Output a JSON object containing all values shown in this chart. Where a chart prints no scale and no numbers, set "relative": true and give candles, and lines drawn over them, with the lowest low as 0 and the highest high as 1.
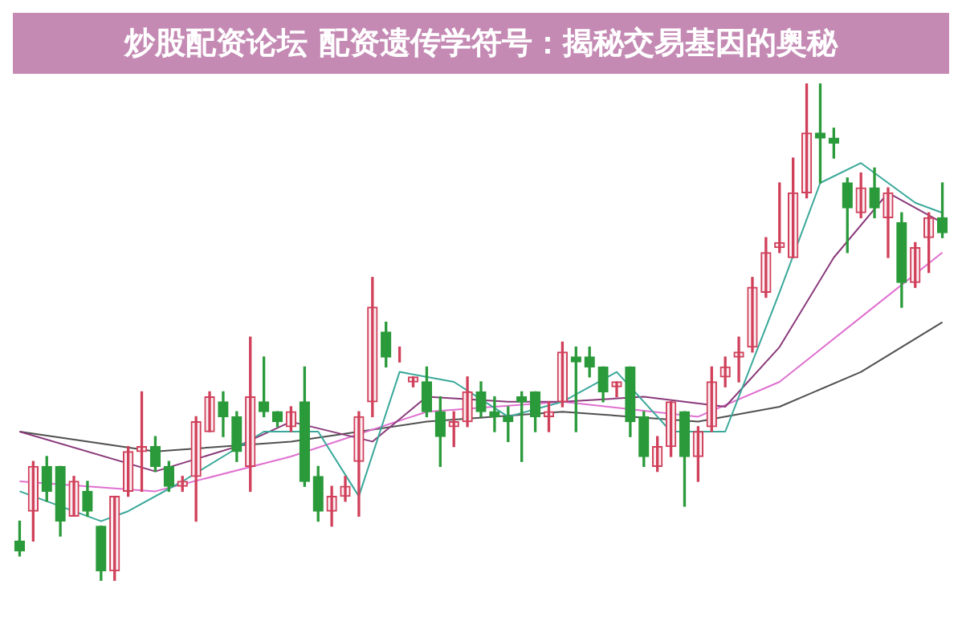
{
  "chart_data": {
    "type": "candlestick",
    "title": "炒股配资论坛 配资遗传学符号：揭秘交易基因的奥秘",
    "relative": true,
    "legend": false,
    "categories": [
      null,
      null,
      null,
      null,
      null,
      null,
      null,
      null,
      null,
      null,
      null,
      null,
      null,
      null,
      null,
      null,
      null,
      null,
      null,
      null,
      null,
      null,
      null,
      null,
      null,
      null,
      null,
      null,
      null,
      null,
      null,
      null,
      null,
      null,
      null,
      null,
      null,
      null,
      null,
      null,
      null,
      null,
      null,
      null,
      null,
      null,
      null,
      null,
      null,
      null,
      null,
      null,
      null,
      null,
      null,
      null,
      null,
      null,
      null,
      null,
      null,
      null,
      null,
      null,
      null,
      null,
      null,
      null,
      null
    ],
    "ohlc": [
      [
        0.08,
        0.12,
        0.05,
        0.06
      ],
      [
        0.14,
        0.24,
        0.08,
        0.23
      ],
      [
        0.23,
        0.25,
        0.16,
        0.18
      ],
      [
        0.23,
        0.23,
        0.09,
        0.12
      ],
      [
        0.13,
        0.21,
        0.13,
        0.2
      ],
      [
        0.18,
        0.2,
        0.13,
        0.14
      ],
      [
        0.11,
        0.11,
        0.0,
        0.02
      ],
      [
        0.02,
        0.17,
        0.0,
        0.17
      ],
      [
        0.18,
        0.27,
        0.17,
        0.26
      ],
      [
        0.26,
        0.38,
        0.18,
        0.27
      ],
      [
        0.27,
        0.29,
        0.22,
        0.23
      ],
      [
        0.23,
        0.24,
        0.18,
        0.19
      ],
      [
        0.19,
        0.21,
        0.18,
        0.2
      ],
      [
        0.21,
        0.33,
        0.12,
        0.32
      ],
      [
        0.3,
        0.38,
        0.3,
        0.37
      ],
      [
        0.36,
        0.38,
        0.29,
        0.33
      ],
      [
        0.33,
        0.34,
        0.24,
        0.26
      ],
      [
        0.23,
        0.49,
        0.18,
        0.37
      ],
      [
        0.36,
        0.45,
        0.33,
        0.34
      ],
      [
        0.34,
        0.34,
        0.31,
        0.32
      ],
      [
        0.31,
        0.35,
        0.3,
        0.34
      ],
      [
        0.36,
        0.43,
        0.19,
        0.2
      ],
      [
        0.21,
        0.23,
        0.12,
        0.14
      ],
      [
        0.14,
        0.19,
        0.11,
        0.17
      ],
      [
        0.17,
        0.21,
        0.16,
        0.19
      ],
      [
        0.24,
        0.34,
        0.13,
        0.33
      ],
      [
        0.36,
        0.61,
        0.33,
        0.55
      ],
      [
        0.5,
        0.52,
        0.43,
        0.45
      ],
      [
        0.46,
        0.47,
        0.44,
        0.46
      ],
      [
        0.4,
        0.41,
        0.39,
        0.41
      ],
      [
        0.4,
        0.43,
        0.33,
        0.34
      ],
      [
        0.34,
        0.37,
        0.23,
        0.29
      ],
      [
        0.31,
        0.34,
        0.27,
        0.32
      ],
      [
        0.32,
        0.41,
        0.31,
        0.38
      ],
      [
        0.38,
        0.4,
        0.33,
        0.34
      ],
      [
        0.34,
        0.37,
        0.3,
        0.33
      ],
      [
        0.33,
        0.35,
        0.28,
        0.32
      ],
      [
        0.37,
        0.38,
        0.24,
        0.36
      ],
      [
        0.38,
        0.38,
        0.3,
        0.33
      ],
      [
        0.33,
        0.36,
        0.3,
        0.34
      ],
      [
        0.36,
        0.48,
        0.35,
        0.46
      ],
      [
        0.45,
        0.47,
        0.3,
        0.44
      ],
      [
        0.45,
        0.47,
        0.41,
        0.43
      ],
      [
        0.43,
        0.43,
        0.36,
        0.38
      ],
      [
        0.39,
        0.4,
        0.37,
        0.4
      ],
      [
        0.43,
        0.43,
        0.29,
        0.32
      ],
      [
        0.33,
        0.34,
        0.23,
        0.25
      ],
      [
        0.23,
        0.29,
        0.22,
        0.27
      ],
      [
        0.27,
        0.36,
        0.25,
        0.36
      ],
      [
        0.34,
        0.34,
        0.15,
        0.25
      ],
      [
        0.25,
        0.31,
        0.2,
        0.3
      ],
      [
        0.31,
        0.43,
        0.3,
        0.4
      ],
      [
        0.41,
        0.45,
        0.39,
        0.43
      ],
      [
        0.45,
        0.49,
        0.4,
        0.46
      ],
      [
        0.47,
        0.61,
        0.46,
        0.59
      ],
      [
        0.58,
        0.69,
        0.57,
        0.66
      ],
      [
        0.67,
        0.8,
        0.66,
        0.68
      ],
      [
        0.65,
        0.85,
        0.65,
        0.78
      ],
      [
        0.78,
        1,
        0.77,
        0.9
      ],
      [
        0.9,
        1,
        0.8,
        0.89
      ],
      [
        0.89,
        0.91,
        0.85,
        0.88
      ],
      [
        0.8,
        0.81,
        0.66,
        0.75
      ],
      [
        0.74,
        0.82,
        0.73,
        0.79
      ],
      [
        0.79,
        0.83,
        0.73,
        0.75
      ],
      [
        0.73,
        0.79,
        0.65,
        0.78
      ],
      [
        0.72,
        0.74,
        0.55,
        0.6
      ],
      [
        0.6,
        0.68,
        0.59,
        0.67
      ],
      [
        0.69,
        0.74,
        0.62,
        0.73
      ],
      [
        0.73,
        0.8,
        0.69,
        0.7
      ]
    ],
    "series": [
      {
        "type": "line",
        "color": "#3aa89a",
        "values": [
          0.18,
          null,
          null,
          null,
          null,
          null,
          0.12,
          null,
          0.14,
          null,
          null,
          null,
          0.2,
          null,
          null,
          null,
          null,
          null,
          0.3,
          null,
          null,
          null,
          0.3,
          null,
          null,
          0.17,
          null,
          null,
          0.42,
          null,
          null,
          null,
          0.4,
          null,
          null,
          null,
          0.33,
          null,
          null,
          null,
          0.36,
          null,
          null,
          null,
          0.42,
          null,
          null,
          null,
          0.3,
          null,
          null,
          null,
          0.3,
          null,
          null,
          null,
          0.58,
          null,
          null,
          0.8,
          null,
          null,
          0.84,
          null,
          null,
          null,
          0.76,
          null,
          0.74
        ]
      },
      {
        "type": "line",
        "color": "#8a3a7a",
        "values": [
          0.3,
          null,
          null,
          null,
          null,
          null,
          null,
          null,
          null,
          null,
          0.22,
          null,
          null,
          null,
          null,
          null,
          0.27,
          null,
          null,
          null,
          0.32,
          null,
          null,
          null,
          null,
          null,
          0.28,
          null,
          null,
          null,
          0.37,
          null,
          null,
          null,
          null,
          null,
          0.36,
          null,
          null,
          null,
          0.36,
          null,
          null,
          null,
          null,
          null,
          0.37,
          null,
          null,
          null,
          null,
          null,
          0.35,
          null,
          null,
          null,
          0.47,
          null,
          null,
          null,
          0.65,
          null,
          null,
          null,
          0.78,
          null,
          null,
          null,
          0.72
        ]
      },
      {
        "type": "line",
        "color": "#e070d0",
        "values": [
          0.2,
          null,
          null,
          null,
          null,
          null,
          null,
          null,
          null,
          null,
          0.18,
          null,
          null,
          null,
          null,
          null,
          null,
          null,
          null,
          null,
          0.25,
          null,
          null,
          null,
          null,
          null,
          null,
          null,
          null,
          null,
          0.34,
          null,
          null,
          null,
          null,
          null,
          null,
          null,
          null,
          null,
          0.36,
          null,
          null,
          null,
          null,
          null,
          null,
          null,
          null,
          null,
          0.33,
          null,
          null,
          null,
          null,
          null,
          0.4,
          null,
          null,
          null,
          null,
          null,
          0.53,
          null,
          null,
          null,
          null,
          null,
          0.66
        ]
      },
      {
        "type": "line",
        "color": "#505050",
        "values": [
          0.3,
          null,
          null,
          null,
          null,
          null,
          null,
          null,
          null,
          null,
          0.26,
          null,
          null,
          null,
          null,
          null,
          null,
          null,
          null,
          null,
          0.28,
          null,
          null,
          null,
          null,
          null,
          null,
          null,
          null,
          null,
          0.32,
          null,
          null,
          null,
          null,
          null,
          null,
          null,
          null,
          null,
          0.34,
          null,
          null,
          null,
          null,
          null,
          null,
          null,
          null,
          null,
          0.32,
          null,
          null,
          null,
          null,
          null,
          0.35,
          null,
          null,
          null,
          null,
          null,
          0.42,
          null,
          null,
          null,
          null,
          null,
          0.52
        ]
      }
    ]
  }
}
